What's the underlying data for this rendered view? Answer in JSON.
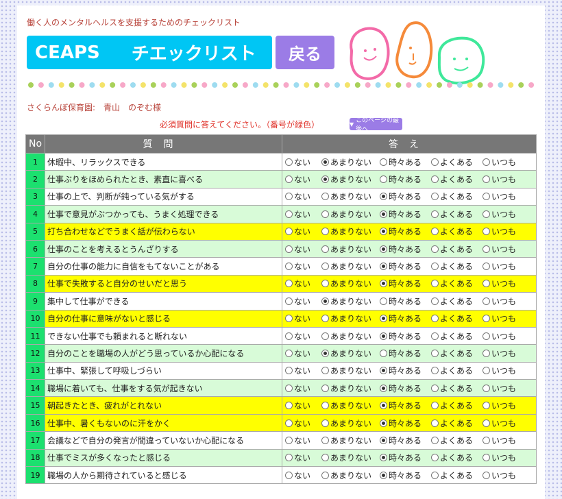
{
  "header": {
    "subtitle": "働く人のメンタルヘルスを支援するためのチェックリスト",
    "banner_left": "CEAPS",
    "banner_right": "チエックリスト",
    "back_button": "戻る"
  },
  "company_line": "さくらんぼ保育園:　青山　のぞむ様",
  "required_note": "必須質問に答えてください。（番号が緑色）",
  "jump_button": "このページの最後へ",
  "table": {
    "col_no": "No",
    "col_question": "質問",
    "col_answer": "答え"
  },
  "options": [
    "ない",
    "あまりない",
    "時々ある",
    "よくある",
    "いつも"
  ],
  "questions": [
    {
      "no": "1",
      "text": "休暇中、リラックスできる",
      "selected": 1,
      "style": "white"
    },
    {
      "no": "2",
      "text": "仕事ぶりをほめられたとき、素直に喜べる",
      "selected": 1,
      "style": "green"
    },
    {
      "no": "3",
      "text": "仕事の上で、判断が鈍っている気がする",
      "selected": 2,
      "style": "white"
    },
    {
      "no": "4",
      "text": "仕事で意見がぶつかっても、うまく処理できる",
      "selected": 2,
      "style": "green"
    },
    {
      "no": "5",
      "text": "打ち合わせなどでうまく話が伝わらない",
      "selected": 2,
      "style": "yellow"
    },
    {
      "no": "6",
      "text": "仕事のことを考えるとうんざりする",
      "selected": 2,
      "style": "green"
    },
    {
      "no": "7",
      "text": "自分の仕事の能力に自信をもてないことがある",
      "selected": 2,
      "style": "white"
    },
    {
      "no": "8",
      "text": "仕事で失敗すると自分のせいだと思う",
      "selected": 2,
      "style": "yellow"
    },
    {
      "no": "9",
      "text": "集中して仕事ができる",
      "selected": 1,
      "style": "white"
    },
    {
      "no": "10",
      "text": "自分の仕事に意味がないと感じる",
      "selected": 2,
      "style": "yellow"
    },
    {
      "no": "11",
      "text": "できない仕事でも頼まれると断れない",
      "selected": 2,
      "style": "white"
    },
    {
      "no": "12",
      "text": "自分のことを職場の人がどう思っているか心配になる",
      "selected": 1,
      "style": "green"
    },
    {
      "no": "13",
      "text": "仕事中、緊張して呼吸しづらい",
      "selected": 2,
      "style": "white"
    },
    {
      "no": "14",
      "text": "職場に着いても、仕事をする気が起きない",
      "selected": 2,
      "style": "green"
    },
    {
      "no": "15",
      "text": "朝起きたとき、疲れがとれない",
      "selected": 2,
      "style": "yellow"
    },
    {
      "no": "16",
      "text": "仕事中、暑くもないのに汗をかく",
      "selected": 2,
      "style": "yellow"
    },
    {
      "no": "17",
      "text": "会議などで自分の発言が間違っていないか心配になる",
      "selected": 2,
      "style": "white"
    },
    {
      "no": "18",
      "text": "仕事でミスが多くなったと感じる",
      "selected": 2,
      "style": "green"
    },
    {
      "no": "19",
      "text": "職場の人から期待されていると感じる",
      "selected": 2,
      "style": "white"
    }
  ],
  "colors": {
    "banner": "#00c6f4",
    "button": "#9b7ce6",
    "number_cell": "#1ce06f",
    "row_green": "#d8fbd8",
    "row_yellow": "#ffff00",
    "header_cell": "#777777",
    "text_red": "#b8433a"
  }
}
